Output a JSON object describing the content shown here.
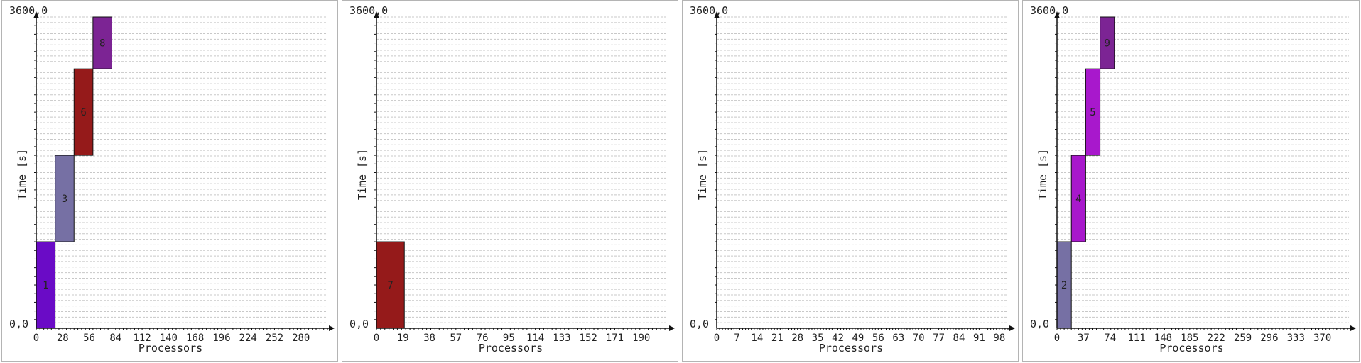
{
  "chart_data": [
    {
      "type": "bar",
      "ylabel": "Time [s]",
      "xlabel": "Processors",
      "y_top_label": "3600,0",
      "y_origin_label": "0,0",
      "ylim": [
        0,
        3600
      ],
      "xlim": [
        0,
        308
      ],
      "ticks": [
        "0",
        "28",
        "56",
        "84",
        "112",
        "140",
        "168",
        "196",
        "224",
        "252",
        "280"
      ],
      "jobs": [
        {
          "label": "1",
          "x0": 0,
          "x1": 20,
          "y0": 0,
          "y1": 1000,
          "color": "#6a0bc6"
        },
        {
          "label": "3",
          "x0": 20,
          "x1": 40,
          "y0": 1000,
          "y1": 2000,
          "color": "#7670a4"
        },
        {
          "label": "6",
          "x0": 40,
          "x1": 60,
          "y0": 2000,
          "y1": 3000,
          "color": "#951a1a"
        },
        {
          "label": "8",
          "x0": 60,
          "x1": 80,
          "y0": 3000,
          "y1": 3600,
          "color": "#7c2494"
        }
      ]
    },
    {
      "type": "bar",
      "ylabel": "Time [s]",
      "xlabel": "Processors",
      "y_top_label": "3600,0",
      "y_origin_label": "0,0",
      "ylim": [
        0,
        3600
      ],
      "xlim": [
        0,
        209
      ],
      "ticks": [
        "0",
        "19",
        "38",
        "57",
        "76",
        "95",
        "114",
        "133",
        "152",
        "171",
        "190"
      ],
      "jobs": [
        {
          "label": "7",
          "x0": 0,
          "x1": 20,
          "y0": 0,
          "y1": 1000,
          "color": "#951a1a"
        }
      ]
    },
    {
      "type": "bar",
      "ylabel": "Time [s]",
      "xlabel": "Processors",
      "y_top_label": "3600,0",
      "y_origin_label": "0,0",
      "ylim": [
        0,
        3600
      ],
      "xlim": [
        0,
        101
      ],
      "ticks": [
        "0",
        "7",
        "14",
        "21",
        "28",
        "35",
        "42",
        "49",
        "56",
        "63",
        "70",
        "77",
        "84",
        "91",
        "98"
      ],
      "jobs": []
    },
    {
      "type": "bar",
      "ylabel": "Time [s]",
      "xlabel": "Processors",
      "y_top_label": "3600,0",
      "y_origin_label": "0,0",
      "ylim": [
        0,
        3600
      ],
      "xlim": [
        0,
        407
      ],
      "ticks": [
        "0",
        "37",
        "74",
        "111",
        "148",
        "185",
        "222",
        "259",
        "296",
        "333",
        "370"
      ],
      "jobs": [
        {
          "label": "2",
          "x0": 0,
          "x1": 20,
          "y0": 0,
          "y1": 1000,
          "color": "#7670a4"
        },
        {
          "label": "4",
          "x0": 20,
          "x1": 40,
          "y0": 1000,
          "y1": 2000,
          "color": "#a818cc"
        },
        {
          "label": "5",
          "x0": 40,
          "x1": 60,
          "y0": 2000,
          "y1": 3000,
          "color": "#a818cc"
        },
        {
          "label": "9",
          "x0": 60,
          "x1": 80,
          "y0": 3000,
          "y1": 3600,
          "color": "#7c2494"
        }
      ]
    }
  ]
}
